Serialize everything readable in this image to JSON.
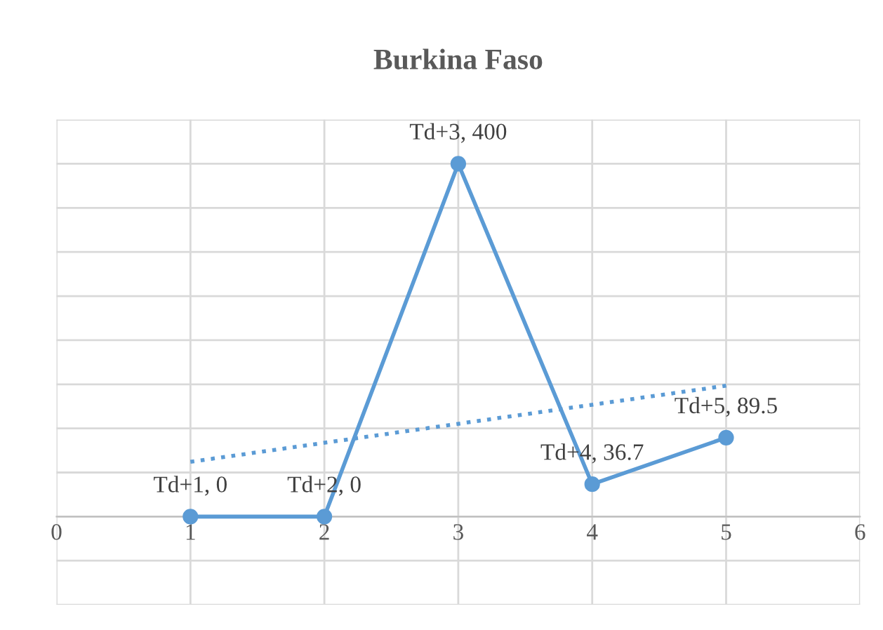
{
  "chart_data": {
    "type": "line",
    "title": "Burkina Faso",
    "x": [
      1,
      2,
      3,
      4,
      5
    ],
    "series": [
      {
        "color": "#5b9bd5",
        "values": [
          0,
          0,
          400,
          36.7,
          89.5
        ],
        "value_labels": [
          "Td+1, 0",
          "Td+2, 0",
          "Td+3, 400",
          "Td+4, 36.7",
          "Td+5, 89.5"
        ],
        "marker": "circle",
        "line_style": "solid"
      },
      {
        "color": "#5b9bd5",
        "x": [
          1,
          5
        ],
        "values": [
          62.1,
          148.4
        ],
        "marker": "none",
        "line_style": "dotted"
      }
    ],
    "xlim": [
      0,
      6
    ],
    "xticks": [
      0,
      1,
      2,
      3,
      4,
      5,
      6
    ],
    "ylim": [
      -100,
      450
    ],
    "yticks": [
      {
        "value": -100,
        "label": null
      },
      {
        "value": -50,
        "label": null
      },
      {
        "value": 0,
        "label": null
      },
      {
        "value": 50,
        "label": null
      },
      {
        "value": 100,
        "label": null
      },
      {
        "value": 150,
        "label": null
      },
      {
        "value": 200,
        "label": null
      },
      {
        "value": 250,
        "label": null
      },
      {
        "value": 300,
        "label": null
      },
      {
        "value": 350,
        "label": null
      },
      {
        "value": 400,
        "label": null
      },
      {
        "value": 450,
        "label": null
      }
    ],
    "tick_labels": "x",
    "grid": true,
    "legend": false
  }
}
